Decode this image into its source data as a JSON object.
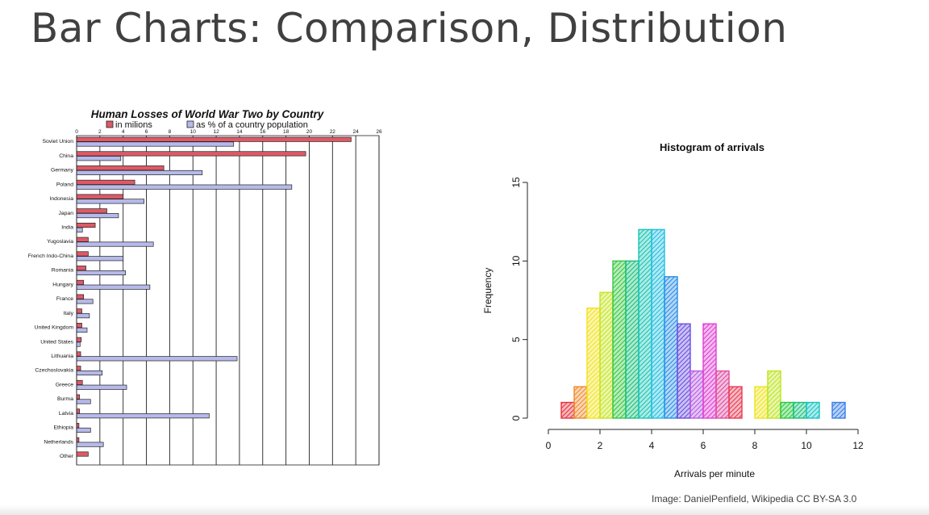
{
  "slide": {
    "title": "Bar Charts: Comparison, Distribution",
    "credit": "Image: DanielPenfield, Wikipedia CC BY-SA 3.0"
  },
  "chart_data": [
    {
      "type": "bar",
      "orientation": "horizontal",
      "title": "Human Losses of World War Two by Country",
      "xlim": [
        0,
        26
      ],
      "x_ticks": [
        0,
        2,
        4,
        6,
        8,
        10,
        12,
        14,
        16,
        18,
        20,
        22,
        24,
        26
      ],
      "grid": true,
      "legend_position": "top",
      "categories": [
        "Soviet Union",
        "China",
        "Germany",
        "Poland",
        "Indonesia",
        "Japan",
        "India",
        "Yugoslavia",
        "French Indo-China",
        "Romania",
        "Hungary",
        "France",
        "Italy",
        "United Kingdom",
        "United States",
        "Lithuania",
        "Czechoslovakia",
        "Greece",
        "Burma",
        "Latvia",
        "Ethiopia",
        "Netherlands",
        "Other"
      ],
      "series": [
        {
          "name": "in milions",
          "color": "#dd5a66",
          "values": [
            23.6,
            19.7,
            7.5,
            5.0,
            4.0,
            2.6,
            1.6,
            1.0,
            1.0,
            0.8,
            0.6,
            0.6,
            0.45,
            0.45,
            0.4,
            0.35,
            0.35,
            0.5,
            0.25,
            0.25,
            0.2,
            0.2,
            1.0
          ]
        },
        {
          "name": "as % of a country population",
          "color": "#b6b9ea",
          "values": [
            13.5,
            3.8,
            10.8,
            18.5,
            5.8,
            3.6,
            0.5,
            6.6,
            4.0,
            4.2,
            6.3,
            1.4,
            1.1,
            0.9,
            0.3,
            13.8,
            2.2,
            4.3,
            1.2,
            11.4,
            1.2,
            2.3,
            0
          ]
        }
      ]
    },
    {
      "type": "bar",
      "subtype": "histogram",
      "title": "Histogram of arrivals",
      "xlabel": "Arrivals per minute",
      "ylabel": "Frequency",
      "xlim": [
        0,
        12
      ],
      "ylim": [
        0,
        15
      ],
      "x_ticks": [
        0,
        2,
        4,
        6,
        8,
        10,
        12
      ],
      "y_ticks": [
        0,
        5,
        10,
        15
      ],
      "bin_width": 0.5,
      "bins": [
        {
          "x0": 0.5,
          "x1": 1.0,
          "count": 1,
          "color": "#e8323c"
        },
        {
          "x0": 1.0,
          "x1": 1.5,
          "count": 2,
          "color": "#ee8a2c"
        },
        {
          "x0": 1.5,
          "x1": 2.0,
          "count": 7,
          "color": "#f3e21c"
        },
        {
          "x0": 2.0,
          "x1": 2.5,
          "count": 8,
          "color": "#c6e41e"
        },
        {
          "x0": 2.5,
          "x1": 3.0,
          "count": 10,
          "color": "#35c940"
        },
        {
          "x0": 3.0,
          "x1": 3.5,
          "count": 10,
          "color": "#19c07c"
        },
        {
          "x0": 3.5,
          "x1": 4.0,
          "count": 12,
          "color": "#19c4b4"
        },
        {
          "x0": 4.0,
          "x1": 4.5,
          "count": 12,
          "color": "#22bfe0"
        },
        {
          "x0": 4.5,
          "x1": 5.0,
          "count": 9,
          "color": "#2a8ee6"
        },
        {
          "x0": 5.0,
          "x1": 5.5,
          "count": 6,
          "color": "#6a4fe0"
        },
        {
          "x0": 5.5,
          "x1": 6.0,
          "count": 3,
          "color": "#b55ae2"
        },
        {
          "x0": 6.0,
          "x1": 6.5,
          "count": 6,
          "color": "#e03ed3"
        },
        {
          "x0": 6.5,
          "x1": 7.0,
          "count": 3,
          "color": "#e04aa0"
        },
        {
          "x0": 7.0,
          "x1": 7.5,
          "count": 2,
          "color": "#e83a52"
        },
        {
          "x0": 7.5,
          "x1": 8.0,
          "count": 0,
          "color": "#f08c2c"
        },
        {
          "x0": 8.0,
          "x1": 8.5,
          "count": 2,
          "color": "#eee41c"
        },
        {
          "x0": 8.5,
          "x1": 9.0,
          "count": 3,
          "color": "#bde41e"
        },
        {
          "x0": 9.0,
          "x1": 9.5,
          "count": 1,
          "color": "#2ac93c"
        },
        {
          "x0": 9.5,
          "x1": 10.0,
          "count": 1,
          "color": "#19c07c"
        },
        {
          "x0": 10.0,
          "x1": 10.5,
          "count": 1,
          "color": "#19c4c4"
        },
        {
          "x0": 10.5,
          "x1": 11.0,
          "count": 0,
          "color": "#22bfe0"
        },
        {
          "x0": 11.0,
          "x1": 11.5,
          "count": 1,
          "color": "#3a7ee6"
        }
      ]
    }
  ]
}
